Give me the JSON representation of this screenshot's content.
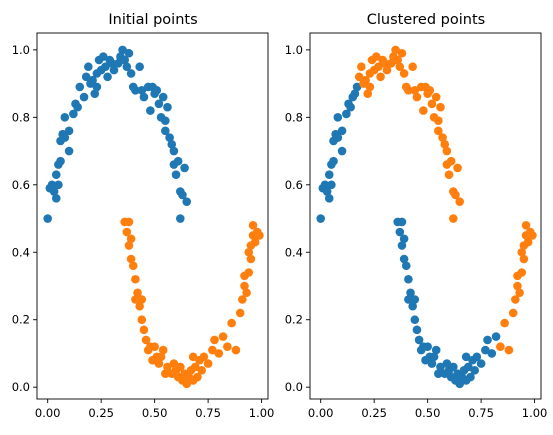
{
  "colors": {
    "blue": "#1f77b4",
    "orange": "#ff7f0e"
  },
  "chart_data": [
    {
      "type": "scatter",
      "title": "Initial points",
      "xlabel": "",
      "ylabel": "",
      "xlim": [
        -0.05,
        1.03
      ],
      "ylim": [
        -0.035,
        1.05
      ],
      "xticks": [
        0.0,
        0.25,
        0.5,
        0.75,
        1.0
      ],
      "xtick_labels": [
        "0.00",
        "0.25",
        "0.50",
        "0.75",
        "1.00"
      ],
      "yticks": [
        0.0,
        0.2,
        0.4,
        0.6,
        0.8,
        1.0
      ],
      "ytick_labels": [
        "0.0",
        "0.2",
        "0.4",
        "0.6",
        "0.8",
        "1.0"
      ],
      "grid": false,
      "series": [
        {
          "color": "#1f77b4",
          "points": [
            [
              0.0,
              0.5
            ],
            [
              0.01,
              0.59
            ],
            [
              0.02,
              0.6
            ],
            [
              0.03,
              0.58
            ],
            [
              0.04,
              0.56
            ],
            [
              0.04,
              0.63
            ],
            [
              0.05,
              0.6
            ],
            [
              0.05,
              0.66
            ],
            [
              0.06,
              0.67
            ],
            [
              0.06,
              0.73
            ],
            [
              0.07,
              0.75
            ],
            [
              0.08,
              0.74
            ],
            [
              0.08,
              0.8
            ],
            [
              0.1,
              0.76
            ],
            [
              0.1,
              0.7
            ],
            [
              0.12,
              0.81
            ],
            [
              0.13,
              0.84
            ],
            [
              0.14,
              0.83
            ],
            [
              0.15,
              0.89
            ],
            [
              0.17,
              0.86
            ],
            [
              0.18,
              0.92
            ],
            [
              0.19,
              0.95
            ],
            [
              0.2,
              0.9
            ],
            [
              0.21,
              0.91
            ],
            [
              0.22,
              0.87
            ],
            [
              0.23,
              0.93
            ],
            [
              0.23,
              0.89
            ],
            [
              0.24,
              0.97
            ],
            [
              0.25,
              0.94
            ],
            [
              0.26,
              0.98
            ],
            [
              0.27,
              0.95
            ],
            [
              0.28,
              0.92
            ],
            [
              0.29,
              0.97
            ],
            [
              0.3,
              0.96
            ],
            [
              0.31,
              0.94
            ],
            [
              0.33,
              0.96
            ],
            [
              0.34,
              0.98
            ],
            [
              0.35,
              1.0
            ],
            [
              0.36,
              0.97
            ],
            [
              0.37,
              0.95
            ],
            [
              0.38,
              0.99
            ],
            [
              0.39,
              0.93
            ],
            [
              0.4,
              0.89
            ],
            [
              0.41,
              0.88
            ],
            [
              0.43,
              0.95
            ],
            [
              0.44,
              0.88
            ],
            [
              0.45,
              0.86
            ],
            [
              0.47,
              0.89
            ],
            [
              0.48,
              0.82
            ],
            [
              0.49,
              0.89
            ],
            [
              0.5,
              0.87
            ],
            [
              0.51,
              0.88
            ],
            [
              0.52,
              0.84
            ],
            [
              0.53,
              0.8
            ],
            [
              0.54,
              0.86
            ],
            [
              0.55,
              0.79
            ],
            [
              0.55,
              0.76
            ],
            [
              0.56,
              0.83
            ],
            [
              0.57,
              0.74
            ],
            [
              0.58,
              0.72
            ],
            [
              0.59,
              0.7
            ],
            [
              0.59,
              0.66
            ],
            [
              0.6,
              0.63
            ],
            [
              0.61,
              0.67
            ],
            [
              0.62,
              0.58
            ],
            [
              0.62,
              0.5
            ],
            [
              0.63,
              0.57
            ],
            [
              0.64,
              0.65
            ],
            [
              0.65,
              0.55
            ]
          ]
        },
        {
          "color": "#ff7f0e",
          "points": [
            [
              0.36,
              0.49
            ],
            [
              0.38,
              0.49
            ],
            [
              0.37,
              0.46
            ],
            [
              0.38,
              0.42
            ],
            [
              0.39,
              0.44
            ],
            [
              0.39,
              0.38
            ],
            [
              0.4,
              0.36
            ],
            [
              0.41,
              0.32
            ],
            [
              0.41,
              0.26
            ],
            [
              0.42,
              0.28
            ],
            [
              0.43,
              0.24
            ],
            [
              0.44,
              0.26
            ],
            [
              0.44,
              0.2
            ],
            [
              0.45,
              0.17
            ],
            [
              0.46,
              0.14
            ],
            [
              0.47,
              0.11
            ],
            [
              0.48,
              0.12
            ],
            [
              0.49,
              0.08
            ],
            [
              0.5,
              0.12
            ],
            [
              0.51,
              0.09
            ],
            [
              0.52,
              0.07
            ],
            [
              0.53,
              0.09
            ],
            [
              0.54,
              0.11
            ],
            [
              0.55,
              0.04
            ],
            [
              0.56,
              0.06
            ],
            [
              0.58,
              0.04
            ],
            [
              0.59,
              0.07
            ],
            [
              0.6,
              0.05
            ],
            [
              0.61,
              0.03
            ],
            [
              0.62,
              0.06
            ],
            [
              0.63,
              0.02
            ],
            [
              0.64,
              0.04
            ],
            [
              0.65,
              0.01
            ],
            [
              0.66,
              0.03
            ],
            [
              0.67,
              0.05
            ],
            [
              0.68,
              0.02
            ],
            [
              0.68,
              0.09
            ],
            [
              0.69,
              0.06
            ],
            [
              0.7,
              0.03
            ],
            [
              0.71,
              0.08
            ],
            [
              0.72,
              0.05
            ],
            [
              0.73,
              0.09
            ],
            [
              0.75,
              0.07
            ],
            [
              0.77,
              0.11
            ],
            [
              0.78,
              0.14
            ],
            [
              0.8,
              0.1
            ],
            [
              0.82,
              0.15
            ],
            [
              0.84,
              0.12
            ],
            [
              0.86,
              0.19
            ],
            [
              0.88,
              0.11
            ],
            [
              0.9,
              0.22
            ],
            [
              0.91,
              0.26
            ],
            [
              0.92,
              0.3
            ],
            [
              0.92,
              0.33
            ],
            [
              0.93,
              0.28
            ],
            [
              0.94,
              0.34
            ],
            [
              0.94,
              0.4
            ],
            [
              0.95,
              0.38
            ],
            [
              0.95,
              0.42
            ],
            [
              0.96,
              0.45
            ],
            [
              0.96,
              0.48
            ],
            [
              0.97,
              0.43
            ],
            [
              0.98,
              0.46
            ],
            [
              0.99,
              0.45
            ]
          ]
        }
      ]
    },
    {
      "type": "scatter",
      "title": "Clustered points",
      "xlabel": "",
      "ylabel": "",
      "xlim": [
        -0.05,
        1.03
      ],
      "ylim": [
        -0.035,
        1.05
      ],
      "xticks": [
        0.0,
        0.25,
        0.5,
        0.75,
        1.0
      ],
      "xtick_labels": [
        "0.00",
        "0.25",
        "0.50",
        "0.75",
        "1.00"
      ],
      "yticks": [
        0.0,
        0.2,
        0.4,
        0.6,
        0.8,
        1.0
      ],
      "ytick_labels": [
        "0.0",
        "0.2",
        "0.4",
        "0.6",
        "0.8",
        "1.0"
      ],
      "grid": false,
      "series": [
        {
          "color": "#1f77b4",
          "points": [
            [
              0.0,
              0.5
            ],
            [
              0.01,
              0.59
            ],
            [
              0.02,
              0.6
            ],
            [
              0.03,
              0.58
            ],
            [
              0.04,
              0.56
            ],
            [
              0.04,
              0.63
            ],
            [
              0.05,
              0.6
            ],
            [
              0.05,
              0.66
            ],
            [
              0.06,
              0.67
            ],
            [
              0.06,
              0.73
            ],
            [
              0.07,
              0.75
            ],
            [
              0.08,
              0.74
            ],
            [
              0.08,
              0.8
            ],
            [
              0.1,
              0.76
            ],
            [
              0.1,
              0.7
            ],
            [
              0.12,
              0.81
            ],
            [
              0.13,
              0.84
            ],
            [
              0.14,
              0.83
            ],
            [
              0.15,
              0.86
            ],
            [
              0.16,
              0.87
            ],
            [
              0.17,
              0.89
            ],
            [
              0.36,
              0.49
            ],
            [
              0.38,
              0.49
            ],
            [
              0.37,
              0.46
            ],
            [
              0.38,
              0.42
            ],
            [
              0.39,
              0.44
            ],
            [
              0.39,
              0.38
            ],
            [
              0.4,
              0.36
            ],
            [
              0.41,
              0.32
            ],
            [
              0.41,
              0.26
            ],
            [
              0.42,
              0.28
            ],
            [
              0.43,
              0.24
            ],
            [
              0.44,
              0.26
            ],
            [
              0.44,
              0.2
            ],
            [
              0.45,
              0.17
            ],
            [
              0.46,
              0.14
            ],
            [
              0.47,
              0.11
            ],
            [
              0.48,
              0.12
            ],
            [
              0.49,
              0.08
            ],
            [
              0.5,
              0.12
            ],
            [
              0.51,
              0.09
            ],
            [
              0.52,
              0.07
            ],
            [
              0.53,
              0.09
            ],
            [
              0.54,
              0.11
            ],
            [
              0.55,
              0.04
            ],
            [
              0.56,
              0.06
            ],
            [
              0.58,
              0.04
            ],
            [
              0.59,
              0.07
            ],
            [
              0.6,
              0.05
            ],
            [
              0.61,
              0.03
            ],
            [
              0.62,
              0.06
            ],
            [
              0.63,
              0.02
            ],
            [
              0.64,
              0.04
            ],
            [
              0.65,
              0.01
            ],
            [
              0.66,
              0.03
            ],
            [
              0.67,
              0.05
            ],
            [
              0.68,
              0.02
            ],
            [
              0.68,
              0.09
            ],
            [
              0.69,
              0.06
            ],
            [
              0.7,
              0.03
            ],
            [
              0.71,
              0.08
            ],
            [
              0.72,
              0.05
            ],
            [
              0.73,
              0.09
            ],
            [
              0.75,
              0.07
            ],
            [
              0.77,
              0.11
            ],
            [
              0.78,
              0.14
            ],
            [
              0.8,
              0.1
            ],
            [
              0.82,
              0.15
            ]
          ]
        },
        {
          "color": "#ff7f0e",
          "points": [
            [
              0.18,
              0.92
            ],
            [
              0.19,
              0.95
            ],
            [
              0.2,
              0.9
            ],
            [
              0.21,
              0.91
            ],
            [
              0.22,
              0.87
            ],
            [
              0.23,
              0.93
            ],
            [
              0.23,
              0.89
            ],
            [
              0.24,
              0.97
            ],
            [
              0.25,
              0.94
            ],
            [
              0.26,
              0.98
            ],
            [
              0.27,
              0.95
            ],
            [
              0.28,
              0.92
            ],
            [
              0.29,
              0.97
            ],
            [
              0.3,
              0.96
            ],
            [
              0.31,
              0.94
            ],
            [
              0.33,
              0.96
            ],
            [
              0.34,
              0.98
            ],
            [
              0.35,
              1.0
            ],
            [
              0.36,
              0.97
            ],
            [
              0.37,
              0.95
            ],
            [
              0.38,
              0.99
            ],
            [
              0.39,
              0.93
            ],
            [
              0.4,
              0.89
            ],
            [
              0.41,
              0.88
            ],
            [
              0.43,
              0.95
            ],
            [
              0.44,
              0.88
            ],
            [
              0.45,
              0.86
            ],
            [
              0.47,
              0.89
            ],
            [
              0.48,
              0.82
            ],
            [
              0.49,
              0.89
            ],
            [
              0.5,
              0.87
            ],
            [
              0.51,
              0.88
            ],
            [
              0.52,
              0.84
            ],
            [
              0.53,
              0.8
            ],
            [
              0.54,
              0.86
            ],
            [
              0.55,
              0.79
            ],
            [
              0.55,
              0.76
            ],
            [
              0.56,
              0.83
            ],
            [
              0.57,
              0.74
            ],
            [
              0.58,
              0.72
            ],
            [
              0.59,
              0.7
            ],
            [
              0.59,
              0.66
            ],
            [
              0.6,
              0.63
            ],
            [
              0.61,
              0.67
            ],
            [
              0.62,
              0.58
            ],
            [
              0.62,
              0.5
            ],
            [
              0.63,
              0.57
            ],
            [
              0.64,
              0.65
            ],
            [
              0.65,
              0.55
            ],
            [
              0.84,
              0.12
            ],
            [
              0.86,
              0.19
            ],
            [
              0.88,
              0.11
            ],
            [
              0.9,
              0.22
            ],
            [
              0.91,
              0.26
            ],
            [
              0.92,
              0.3
            ],
            [
              0.92,
              0.33
            ],
            [
              0.93,
              0.28
            ],
            [
              0.94,
              0.34
            ],
            [
              0.94,
              0.4
            ],
            [
              0.95,
              0.38
            ],
            [
              0.95,
              0.42
            ],
            [
              0.96,
              0.45
            ],
            [
              0.96,
              0.48
            ],
            [
              0.97,
              0.43
            ],
            [
              0.98,
              0.46
            ],
            [
              0.99,
              0.45
            ]
          ]
        }
      ]
    }
  ]
}
